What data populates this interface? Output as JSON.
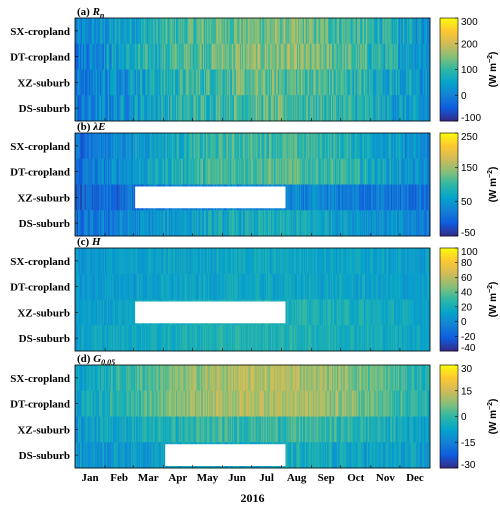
{
  "chart_data": {
    "type": "heatmap",
    "x_ticks": [
      "Jan",
      "Feb",
      "Mar",
      "Apr",
      "May",
      "Jun",
      "Jul",
      "Aug",
      "Sep",
      "Oct",
      "Nov",
      "Dec"
    ],
    "xlabel": "2016",
    "rows": [
      "SX-cropland",
      "DT-cropland",
      "XZ-suburb",
      "DS-suburb"
    ],
    "colormap": "parula",
    "colormap_stops": [
      "#352a87",
      "#0f5cdd",
      "#1481d6",
      "#06a4ca",
      "#2eb7a4",
      "#87bf77",
      "#d1bb59",
      "#fec832",
      "#f9fb0e"
    ],
    "panels": [
      {
        "title": "(a) R",
        "title_sub": "n",
        "cbar_ticks": [
          300,
          200,
          100,
          0,
          -100
        ],
        "cbar_unit": "(W m",
        "cbar_unit_sup": "−2",
        "cbar_unit_end": ")",
        "missing": []
      },
      {
        "title": "(b) λE",
        "title_sub": "",
        "cbar_ticks": [
          250,
          150,
          50,
          -50
        ],
        "cbar_unit": "(W m",
        "cbar_unit_sup": "−2",
        "cbar_unit_end": ")",
        "missing": [
          {
            "row": 2,
            "from": "Mar",
            "to": "Aug"
          }
        ]
      },
      {
        "title": "(c) H",
        "title_sub": "",
        "cbar_ticks": [
          100,
          80,
          60,
          40,
          20,
          0,
          -20,
          -40
        ],
        "cbar_unit": "(W m",
        "cbar_unit_sup": "−2",
        "cbar_unit_end": ")",
        "missing": [
          {
            "row": 2,
            "from": "Mar",
            "to": "Aug"
          }
        ]
      },
      {
        "title": "(d) G",
        "title_sub": "0.05",
        "cbar_ticks": [
          30,
          15,
          0,
          -15,
          -30
        ],
        "cbar_unit": "(W m",
        "cbar_unit_sup": "−2",
        "cbar_unit_end": ")",
        "missing": [
          {
            "row": 3,
            "from": "Apr",
            "to": "Aug"
          }
        ]
      }
    ]
  }
}
